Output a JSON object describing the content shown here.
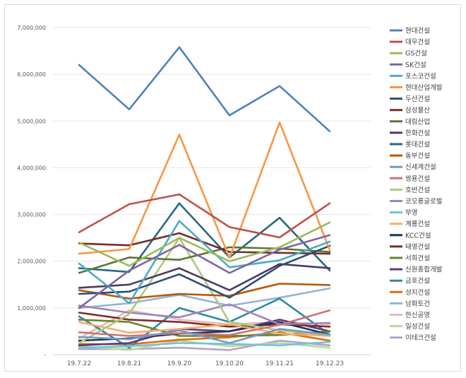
{
  "chart_data": {
    "type": "line",
    "title": "",
    "xlabel": "",
    "ylabel": "",
    "ylim": [
      0,
      7000000
    ],
    "y_ticks": [
      "-",
      "1,000,000",
      "2,000,000",
      "3,000,000",
      "4,000,000",
      "5,000,000",
      "6,000,000",
      "7,000,000"
    ],
    "categories": [
      "19.7.22",
      "19.8.21",
      "19.9.20",
      "19.10.20",
      "19.11.21",
      "19.12.23"
    ],
    "legend_position": "right",
    "grid": true,
    "series": [
      {
        "name": "현대건설",
        "color": "#4f81bd",
        "values": [
          6200000,
          5250000,
          6580000,
          5120000,
          5750000,
          4780000
        ]
      },
      {
        "name": "대우건설",
        "color": "#c0504d",
        "values": [
          2620000,
          3220000,
          3430000,
          2730000,
          2510000,
          3240000
        ]
      },
      {
        "name": "GS건설",
        "color": "#9bbb59",
        "values": [
          2400000,
          1900000,
          2500000,
          2000000,
          2300000,
          2830000
        ]
      },
      {
        "name": "SK건설",
        "color": "#8064a2",
        "values": [
          1000000,
          1800000,
          2350000,
          1750000,
          2250000,
          2560000
        ]
      },
      {
        "name": "포스코건설",
        "color": "#4bacc6",
        "values": [
          1950000,
          1100000,
          2860000,
          1870000,
          2020000,
          2420000
        ]
      },
      {
        "name": "현대산업개발",
        "color": "#f79646",
        "values": [
          2160000,
          2260000,
          4710000,
          2070000,
          4970000,
          2240000
        ]
      },
      {
        "name": "두산건설",
        "color": "#2c4d75",
        "values": [
          1300000,
          1350000,
          1720000,
          1220000,
          1900000,
          2330000
        ]
      },
      {
        "name": "삼성물산",
        "color": "#772c2a",
        "values": [
          2380000,
          2340000,
          2600000,
          2200000,
          2180000,
          2160000
        ]
      },
      {
        "name": "대림산업",
        "color": "#5f7530",
        "values": [
          1750000,
          2080000,
          2030000,
          2300000,
          2270000,
          2200000
        ]
      },
      {
        "name": "한화건설",
        "color": "#4d3b62",
        "values": [
          1430000,
          1500000,
          1850000,
          1380000,
          1940000,
          1850000
        ]
      },
      {
        "name": "롯데건설",
        "color": "#276a7c",
        "values": [
          1850000,
          1770000,
          3240000,
          2080000,
          2930000,
          1800000
        ]
      },
      {
        "name": "동부건설",
        "color": "#b65708",
        "values": [
          1380000,
          1200000,
          1300000,
          1260000,
          1520000,
          1490000
        ]
      },
      {
        "name": "신세계건설",
        "color": "#729aca",
        "values": [
          380000,
          330000,
          520000,
          250000,
          550000,
          430000
        ]
      },
      {
        "name": "쌍용건설",
        "color": "#cd7371",
        "values": [
          480000,
          400000,
          460000,
          420000,
          640000,
          950000
        ]
      },
      {
        "name": "호반건설",
        "color": "#afc97a",
        "values": [
          250000,
          870000,
          2500000,
          700000,
          520000,
          420000
        ]
      },
      {
        "name": "코오롱글로벌",
        "color": "#9d87b8",
        "values": [
          1050000,
          900000,
          800000,
          1080000,
          650000,
          680000
        ]
      },
      {
        "name": "부영",
        "color": "#6ec4db",
        "values": [
          150000,
          180000,
          250000,
          230000,
          200000,
          270000
        ]
      },
      {
        "name": "계룡건설",
        "color": "#f9ab6b",
        "values": [
          700000,
          470000,
          550000,
          650000,
          450000,
          400000
        ]
      },
      {
        "name": "KCC건설",
        "color": "#1f3552",
        "values": [
          300000,
          350000,
          450000,
          500000,
          700000,
          430000
        ]
      },
      {
        "name": "태영건설",
        "color": "#7f2d2b",
        "values": [
          900000,
          750000,
          700000,
          600000,
          650000,
          600000
        ]
      },
      {
        "name": "서희건설",
        "color": "#67832e",
        "values": [
          750000,
          700000,
          400000,
          400000,
          420000,
          500000
        ]
      },
      {
        "name": "신원종합개발",
        "color": "#5a3d7c",
        "values": [
          200000,
          250000,
          550000,
          500000,
          750000,
          500000
        ]
      },
      {
        "name": "금호건설",
        "color": "#2e8aa3",
        "values": [
          820000,
          150000,
          1000000,
          700000,
          1200000,
          430000
        ]
      },
      {
        "name": "성지건설",
        "color": "#e36c09",
        "values": [
          230000,
          220000,
          320000,
          370000,
          480000,
          300000
        ]
      },
      {
        "name": "남화토건",
        "color": "#95b3d7",
        "values": [
          1000000,
          1100000,
          1280000,
          1050000,
          1220000,
          1420000
        ]
      },
      {
        "name": "한신공영",
        "color": "#e6b9b8",
        "values": [
          350000,
          950000,
          750000,
          650000,
          700000,
          650000
        ]
      },
      {
        "name": "일성건설",
        "color": "#c3d69b",
        "values": [
          180000,
          100000,
          300000,
          180000,
          250000,
          150000
        ]
      },
      {
        "name": "이테크건설",
        "color": "#b3a2c7",
        "values": [
          120000,
          120000,
          150000,
          100000,
          300000,
          200000
        ]
      }
    ]
  }
}
